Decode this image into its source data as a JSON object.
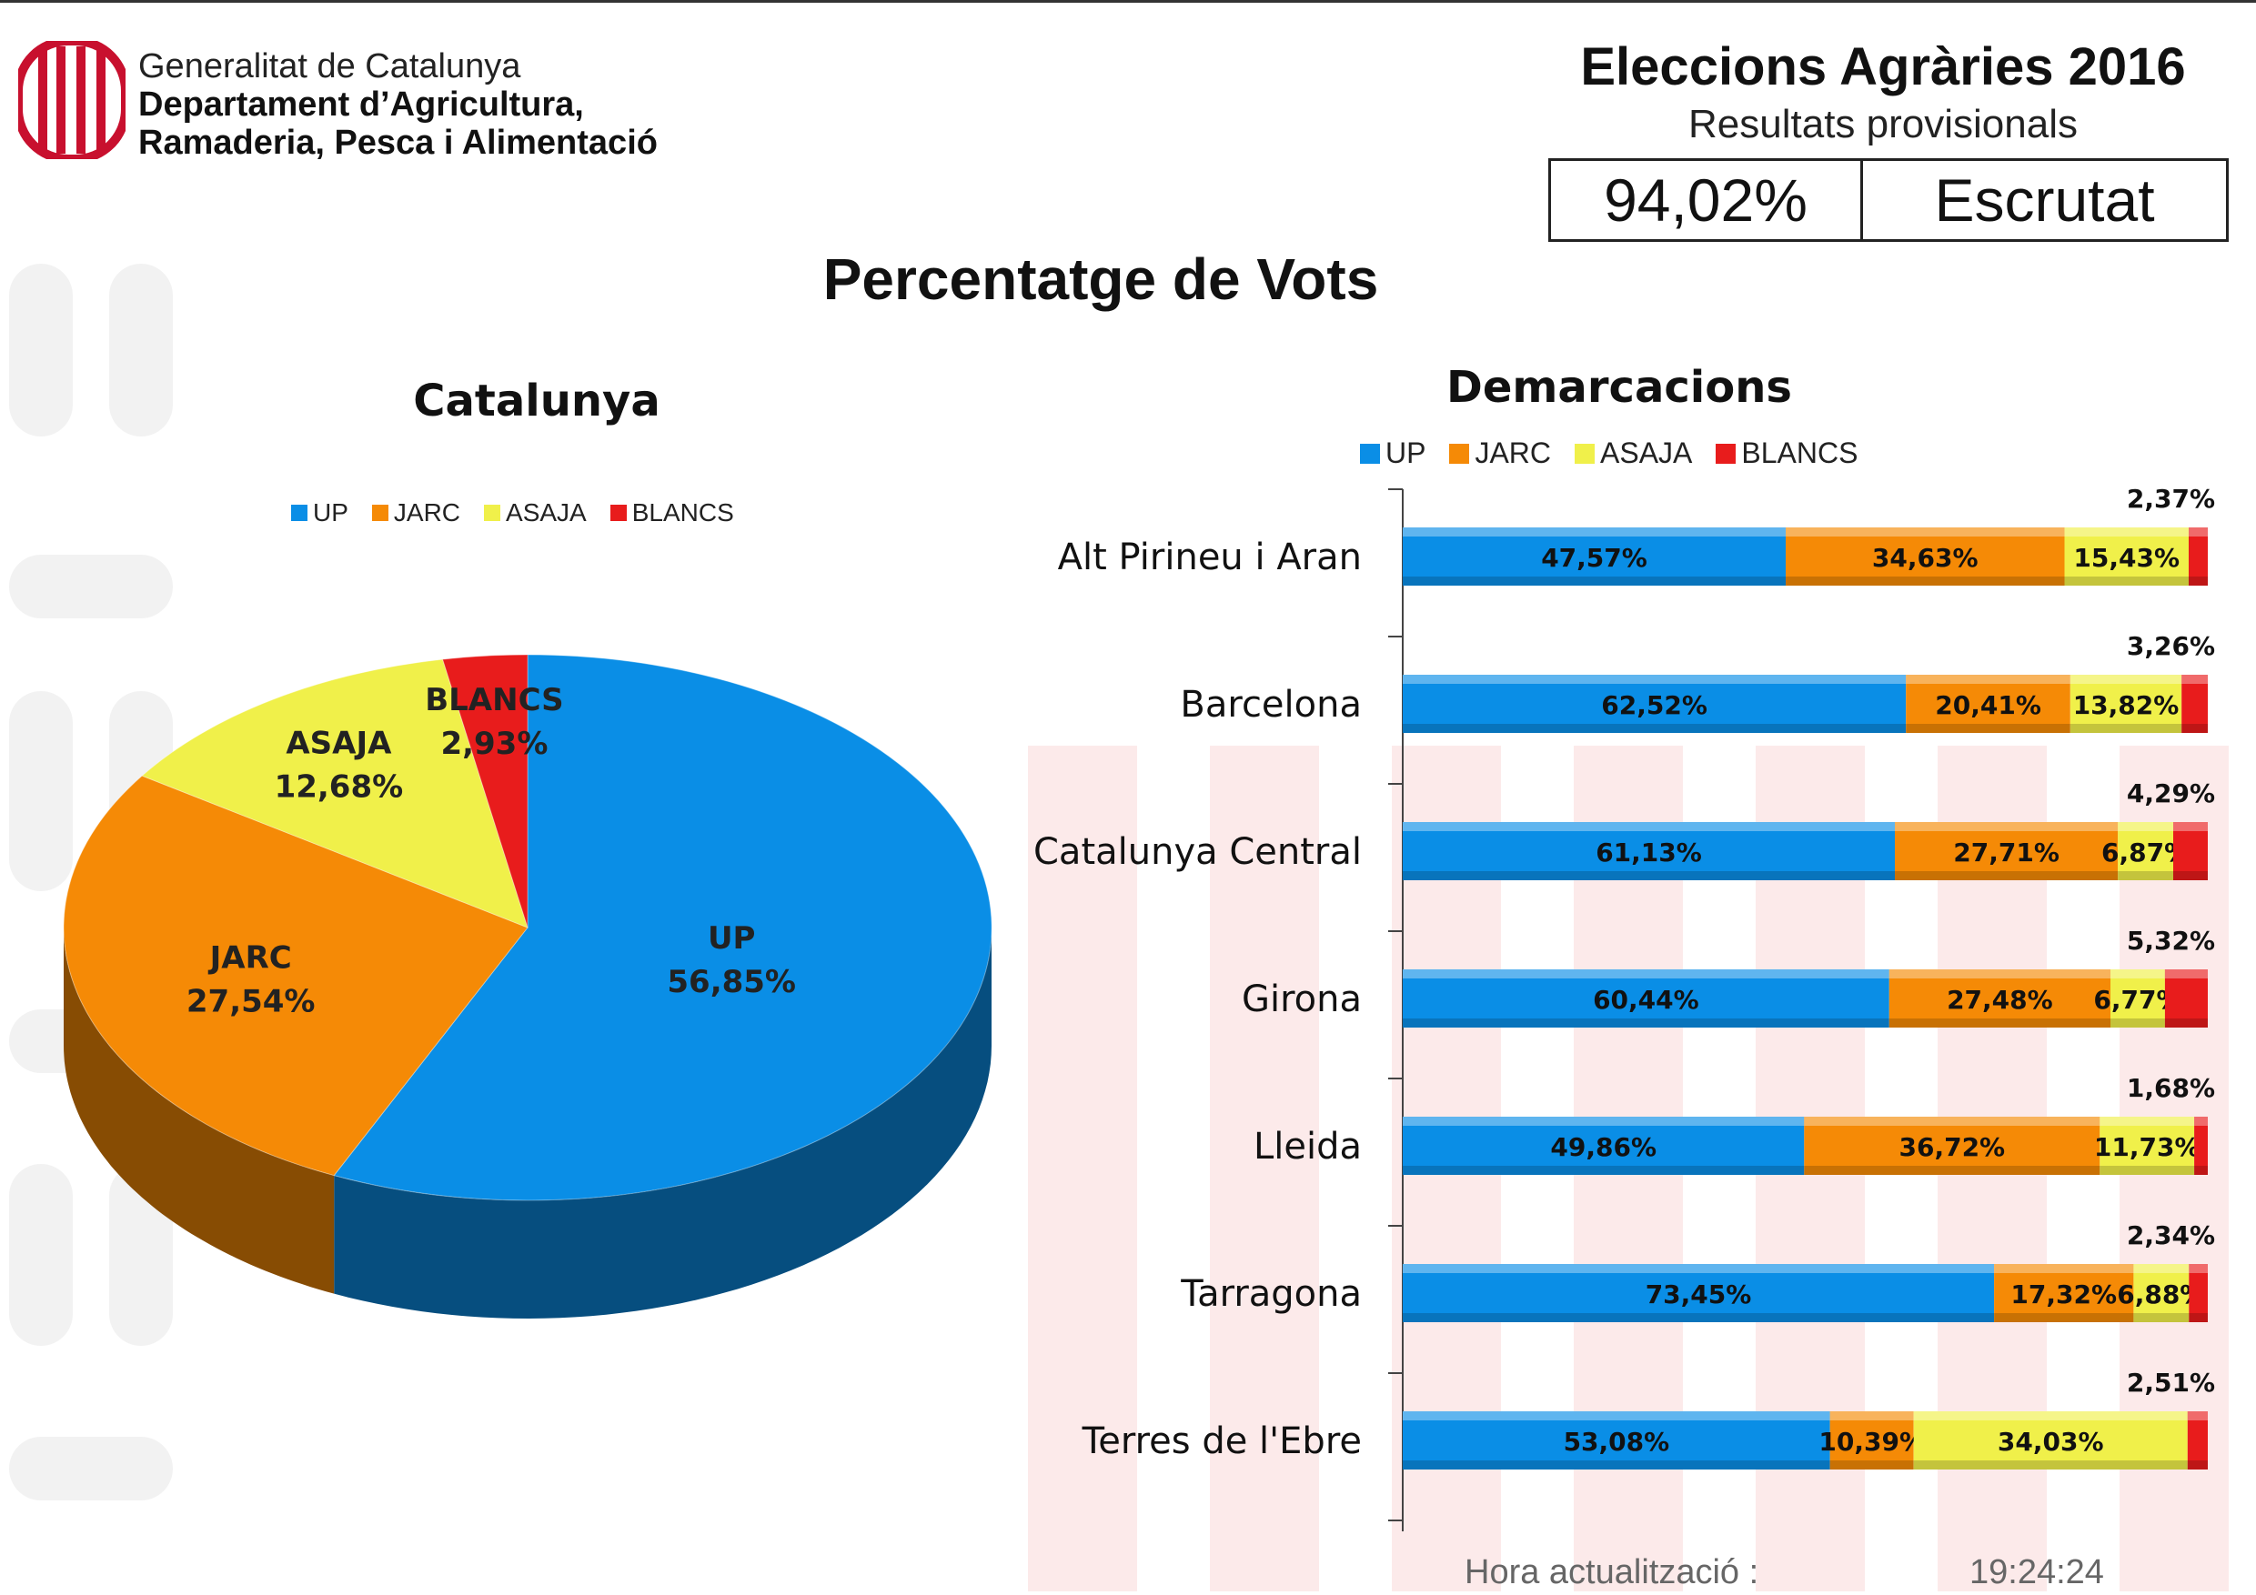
{
  "header": {
    "org_line1": "Generalitat de Catalunya",
    "org_line2": "Departament d’Agricultura,",
    "org_line3": "Ramaderia, Pesca i Alimentació",
    "title": "Eleccions Agràries 2016",
    "subtitle": "Resultats provisionals",
    "scrutiny_pct": "94,02%",
    "scrutiny_label": "Escrutat",
    "logo_icon": "generalitat-shield-icon"
  },
  "page_title": "Percentatge de Vots",
  "colors": {
    "UP": "#0a8ee6",
    "JARC": "#f58a06",
    "ASAJA": "#f0f04a",
    "BLANCS": "#e81c1c"
  },
  "legend": [
    "UP",
    "JARC",
    "ASAJA",
    "BLANCS"
  ],
  "chart_data": [
    {
      "type": "pie",
      "title": "Catalunya",
      "labels": [
        "UP",
        "JARC",
        "ASAJA",
        "BLANCS"
      ],
      "values": [
        56.85,
        27.54,
        12.68,
        2.93
      ],
      "value_labels": [
        "56,85%",
        "27,54%",
        "12,68%",
        "2,93%"
      ],
      "legend_position": "top"
    },
    {
      "type": "bar",
      "orientation": "horizontal",
      "stacked": true,
      "title": "Demarcacions",
      "categories": [
        "Alt Pirineu i Aran",
        "Barcelona",
        "Catalunya Central",
        "Girona",
        "Lleida",
        "Tarragona",
        "Terres de l'Ebre"
      ],
      "series": [
        {
          "name": "UP",
          "values": [
            47.57,
            62.52,
            61.13,
            60.44,
            49.86,
            73.45,
            53.08
          ],
          "labels": [
            "47,57%",
            "62,52%",
            "61,13%",
            "60,44%",
            "49,86%",
            "73,45%",
            "53,08%"
          ]
        },
        {
          "name": "JARC",
          "values": [
            34.63,
            20.41,
            27.71,
            27.48,
            36.72,
            17.32,
            10.39
          ],
          "labels": [
            "34,63%",
            "20,41%",
            "27,71%",
            "27,48%",
            "36,72%",
            "17,32%",
            "10,39%"
          ]
        },
        {
          "name": "ASAJA",
          "values": [
            15.43,
            13.82,
            6.87,
            6.77,
            11.73,
            6.88,
            34.03
          ],
          "labels": [
            "15,43%",
            "13,82%",
            "6,87%",
            "6,77%",
            "11,73%",
            "6,88%",
            "34,03%"
          ]
        },
        {
          "name": "BLANCS",
          "values": [
            2.37,
            3.26,
            4.29,
            5.32,
            1.68,
            2.34,
            2.51
          ],
          "labels": [
            "2,37%",
            "3,26%",
            "4,29%",
            "5,32%",
            "1,68%",
            "2,34%",
            "2,51%"
          ]
        }
      ],
      "legend_position": "top"
    }
  ],
  "footer": {
    "update_label": "Hora actualització :",
    "update_time": "19:24:24"
  }
}
